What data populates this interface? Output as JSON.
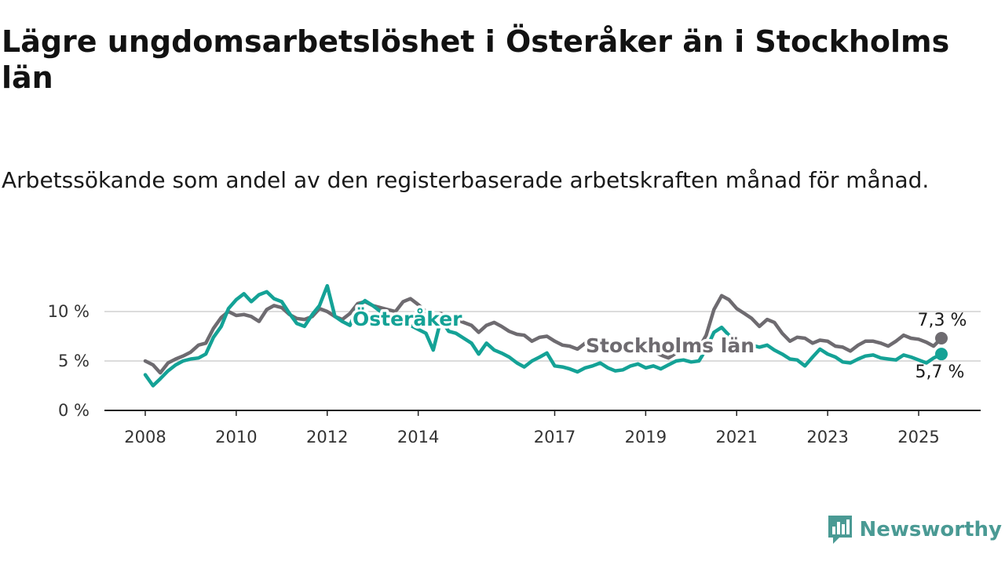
{
  "title": "Lägre ungdomsarbetslöshet i Österåker än i Stockholms län",
  "subtitle": "Arbetssökande som andel av den registerbaserade arbetskraften månad för månad.",
  "brand": {
    "name": "Newsworthy",
    "icon": "newsworthy-logo-icon"
  },
  "chart_data": {
    "type": "line",
    "x_unit": "year (decimal)",
    "y_unit": "%",
    "xlim": [
      2008,
      2025.5
    ],
    "ylim": [
      0,
      10
    ],
    "grid": "horizontal",
    "x_ticks": [
      2008,
      2010,
      2012,
      2014,
      2017,
      2019,
      2021,
      2023,
      2025
    ],
    "x_tick_labels": [
      "2008",
      "2010",
      "2012",
      "2014",
      "2017",
      "2019",
      "2021",
      "2023",
      "2025"
    ],
    "y_ticks": [
      0,
      5,
      10
    ],
    "y_tick_labels": [
      "0 %",
      "5 %",
      "10 %"
    ],
    "series": [
      {
        "name": "Stockholms län",
        "color": "#6e6b70",
        "end_label": "7,3 %",
        "points": [
          [
            2008.0,
            5.0
          ],
          [
            2008.17,
            4.6
          ],
          [
            2008.33,
            3.8
          ],
          [
            2008.5,
            4.8
          ],
          [
            2008.67,
            5.2
          ],
          [
            2008.83,
            5.5
          ],
          [
            2009.0,
            5.9
          ],
          [
            2009.17,
            6.6
          ],
          [
            2009.33,
            6.8
          ],
          [
            2009.5,
            8.3
          ],
          [
            2009.67,
            9.4
          ],
          [
            2009.83,
            10.0
          ],
          [
            2010.0,
            9.6
          ],
          [
            2010.17,
            9.7
          ],
          [
            2010.33,
            9.5
          ],
          [
            2010.5,
            9.0
          ],
          [
            2010.67,
            10.2
          ],
          [
            2010.83,
            10.6
          ],
          [
            2011.0,
            10.4
          ],
          [
            2011.17,
            9.7
          ],
          [
            2011.33,
            9.3
          ],
          [
            2011.5,
            9.2
          ],
          [
            2011.67,
            9.5
          ],
          [
            2011.83,
            10.3
          ],
          [
            2012.0,
            10.0
          ],
          [
            2012.17,
            9.5
          ],
          [
            2012.33,
            9.2
          ],
          [
            2012.5,
            9.8
          ],
          [
            2012.67,
            10.8
          ],
          [
            2012.83,
            11.0
          ],
          [
            2013.0,
            10.6
          ],
          [
            2013.17,
            10.4
          ],
          [
            2013.33,
            10.2
          ],
          [
            2013.5,
            10.0
          ],
          [
            2013.67,
            11.0
          ],
          [
            2013.83,
            11.3
          ],
          [
            2014.0,
            10.7
          ],
          [
            2014.17,
            10.0
          ],
          [
            2014.33,
            9.6
          ],
          [
            2014.5,
            9.8
          ],
          [
            2014.67,
            9.5
          ],
          [
            2014.83,
            9.2
          ],
          [
            2015.0,
            8.9
          ],
          [
            2015.17,
            8.6
          ],
          [
            2015.33,
            7.9
          ],
          [
            2015.5,
            8.6
          ],
          [
            2015.67,
            8.9
          ],
          [
            2015.83,
            8.5
          ],
          [
            2016.0,
            8.0
          ],
          [
            2016.17,
            7.7
          ],
          [
            2016.33,
            7.6
          ],
          [
            2016.5,
            7.0
          ],
          [
            2016.67,
            7.4
          ],
          [
            2016.83,
            7.5
          ],
          [
            2017.0,
            7.0
          ],
          [
            2017.17,
            6.6
          ],
          [
            2017.33,
            6.5
          ],
          [
            2017.5,
            6.2
          ],
          [
            2017.67,
            6.8
          ],
          [
            2017.83,
            7.3
          ],
          [
            2018.0,
            7.0
          ],
          [
            2018.17,
            6.7
          ],
          [
            2018.33,
            6.8
          ],
          [
            2018.5,
            6.3
          ],
          [
            2018.67,
            6.7
          ],
          [
            2018.83,
            6.9
          ],
          [
            2019.0,
            6.5
          ],
          [
            2019.17,
            6.0
          ],
          [
            2019.33,
            5.6
          ],
          [
            2019.5,
            5.3
          ],
          [
            2019.67,
            5.8
          ],
          [
            2019.83,
            6.2
          ],
          [
            2020.0,
            5.9
          ],
          [
            2020.17,
            6.3
          ],
          [
            2020.33,
            7.6
          ],
          [
            2020.5,
            10.2
          ],
          [
            2020.67,
            11.6
          ],
          [
            2020.83,
            11.2
          ],
          [
            2021.0,
            10.3
          ],
          [
            2021.17,
            9.8
          ],
          [
            2021.33,
            9.3
          ],
          [
            2021.5,
            8.5
          ],
          [
            2021.67,
            9.2
          ],
          [
            2021.83,
            8.9
          ],
          [
            2022.0,
            7.8
          ],
          [
            2022.17,
            7.0
          ],
          [
            2022.33,
            7.4
          ],
          [
            2022.5,
            7.3
          ],
          [
            2022.67,
            6.8
          ],
          [
            2022.83,
            7.1
          ],
          [
            2023.0,
            7.0
          ],
          [
            2023.17,
            6.5
          ],
          [
            2023.33,
            6.4
          ],
          [
            2023.5,
            6.0
          ],
          [
            2023.67,
            6.6
          ],
          [
            2023.83,
            7.0
          ],
          [
            2024.0,
            7.0
          ],
          [
            2024.17,
            6.8
          ],
          [
            2024.33,
            6.5
          ],
          [
            2024.5,
            7.0
          ],
          [
            2024.67,
            7.6
          ],
          [
            2024.83,
            7.3
          ],
          [
            2025.0,
            7.2
          ],
          [
            2025.17,
            6.9
          ],
          [
            2025.33,
            6.5
          ],
          [
            2025.5,
            7.3
          ]
        ]
      },
      {
        "name": "Österåker",
        "color": "#14a296",
        "end_label": "5,7 %",
        "points": [
          [
            2008.0,
            3.6
          ],
          [
            2008.17,
            2.5
          ],
          [
            2008.33,
            3.2
          ],
          [
            2008.5,
            4.0
          ],
          [
            2008.67,
            4.6
          ],
          [
            2008.83,
            5.0
          ],
          [
            2009.0,
            5.2
          ],
          [
            2009.17,
            5.3
          ],
          [
            2009.33,
            5.7
          ],
          [
            2009.5,
            7.4
          ],
          [
            2009.67,
            8.5
          ],
          [
            2009.83,
            10.3
          ],
          [
            2010.0,
            11.2
          ],
          [
            2010.17,
            11.8
          ],
          [
            2010.33,
            11.0
          ],
          [
            2010.5,
            11.7
          ],
          [
            2010.67,
            12.0
          ],
          [
            2010.83,
            11.3
          ],
          [
            2011.0,
            11.0
          ],
          [
            2011.17,
            9.8
          ],
          [
            2011.33,
            8.8
          ],
          [
            2011.5,
            8.5
          ],
          [
            2011.67,
            9.7
          ],
          [
            2011.83,
            10.6
          ],
          [
            2012.0,
            12.6
          ],
          [
            2012.17,
            9.5
          ],
          [
            2012.33,
            9.0
          ],
          [
            2012.5,
            8.6
          ],
          [
            2012.67,
            10.5
          ],
          [
            2012.83,
            11.1
          ],
          [
            2013.0,
            10.6
          ],
          [
            2013.17,
            10.0
          ],
          [
            2013.33,
            9.5
          ],
          [
            2013.5,
            9.0
          ],
          [
            2013.67,
            8.7
          ],
          [
            2013.83,
            8.6
          ],
          [
            2014.0,
            8.2
          ],
          [
            2014.17,
            7.8
          ],
          [
            2014.33,
            6.1
          ],
          [
            2014.5,
            9.2
          ],
          [
            2014.67,
            8.0
          ],
          [
            2014.83,
            7.8
          ],
          [
            2015.0,
            7.3
          ],
          [
            2015.17,
            6.8
          ],
          [
            2015.33,
            5.7
          ],
          [
            2015.5,
            6.8
          ],
          [
            2015.67,
            6.1
          ],
          [
            2015.83,
            5.8
          ],
          [
            2016.0,
            5.4
          ],
          [
            2016.17,
            4.8
          ],
          [
            2016.33,
            4.4
          ],
          [
            2016.5,
            5.0
          ],
          [
            2016.67,
            5.4
          ],
          [
            2016.83,
            5.8
          ],
          [
            2017.0,
            4.5
          ],
          [
            2017.17,
            4.4
          ],
          [
            2017.33,
            4.2
          ],
          [
            2017.5,
            3.9
          ],
          [
            2017.67,
            4.3
          ],
          [
            2017.83,
            4.5
          ],
          [
            2018.0,
            4.8
          ],
          [
            2018.17,
            4.3
          ],
          [
            2018.33,
            4.0
          ],
          [
            2018.5,
            4.1
          ],
          [
            2018.67,
            4.5
          ],
          [
            2018.83,
            4.7
          ],
          [
            2019.0,
            4.3
          ],
          [
            2019.17,
            4.5
          ],
          [
            2019.33,
            4.2
          ],
          [
            2019.5,
            4.6
          ],
          [
            2019.67,
            5.0
          ],
          [
            2019.83,
            5.1
          ],
          [
            2020.0,
            4.9
          ],
          [
            2020.17,
            5.0
          ],
          [
            2020.33,
            6.2
          ],
          [
            2020.5,
            7.9
          ],
          [
            2020.67,
            8.4
          ],
          [
            2020.83,
            7.6
          ],
          [
            2021.0,
            7.0
          ],
          [
            2021.17,
            6.6
          ],
          [
            2021.33,
            6.6
          ],
          [
            2021.5,
            6.4
          ],
          [
            2021.67,
            6.6
          ],
          [
            2021.83,
            6.1
          ],
          [
            2022.0,
            5.7
          ],
          [
            2022.17,
            5.2
          ],
          [
            2022.33,
            5.1
          ],
          [
            2022.5,
            4.5
          ],
          [
            2022.67,
            5.4
          ],
          [
            2022.83,
            6.2
          ],
          [
            2023.0,
            5.7
          ],
          [
            2023.17,
            5.4
          ],
          [
            2023.33,
            4.9
          ],
          [
            2023.5,
            4.8
          ],
          [
            2023.67,
            5.2
          ],
          [
            2023.83,
            5.5
          ],
          [
            2024.0,
            5.6
          ],
          [
            2024.17,
            5.3
          ],
          [
            2024.33,
            5.2
          ],
          [
            2024.5,
            5.1
          ],
          [
            2024.67,
            5.6
          ],
          [
            2024.83,
            5.4
          ],
          [
            2025.0,
            5.1
          ],
          [
            2025.17,
            4.8
          ],
          [
            2025.33,
            5.3
          ],
          [
            2025.5,
            5.7
          ]
        ]
      }
    ]
  }
}
